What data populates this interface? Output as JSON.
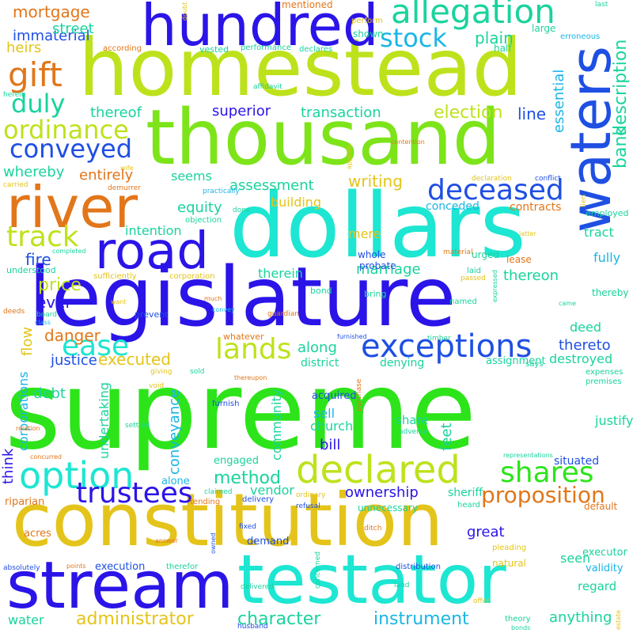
{
  "palette": {
    "blue": "#2b14e8",
    "lime": "#bde21c",
    "green": "#2de41a",
    "cyan": "#1de6d2",
    "orange": "#e2761a",
    "gold": "#e4c41a",
    "royal": "#1f4fe3",
    "teal": "#1ad39d",
    "sky": "#1ab6e6"
  },
  "words": [
    {
      "text": "supreme",
      "color": "#2de41a",
      "dir": "h"
    },
    {
      "text": "constitution",
      "color": "#e4c41a",
      "dir": "h"
    },
    {
      "text": "legislature",
      "color": "#2b14e8",
      "dir": "h"
    },
    {
      "text": "homestead",
      "color": "#bde21c",
      "dir": "h"
    },
    {
      "text": "thousand",
      "color": "#7de41a",
      "dir": "h"
    },
    {
      "text": "dollars",
      "color": "#1de6d2",
      "dir": "h"
    },
    {
      "text": "testator",
      "color": "#1de6d2",
      "dir": "h"
    },
    {
      "text": "stream",
      "color": "#2b14e8",
      "dir": "h"
    },
    {
      "text": "hundred",
      "color": "#2b14e8",
      "dir": "h"
    },
    {
      "text": "road",
      "color": "#2b14e8",
      "dir": "h"
    },
    {
      "text": "river",
      "color": "#e2761a",
      "dir": "h"
    },
    {
      "text": "waters",
      "color": "#1f4fe3",
      "dir": "v"
    },
    {
      "text": "allegation",
      "color": "#1ad39d",
      "dir": "h"
    },
    {
      "text": "option",
      "color": "#1de6d2",
      "dir": "h"
    },
    {
      "text": "declared",
      "color": "#bde21c",
      "dir": "h"
    },
    {
      "text": "exceptions",
      "color": "#1f4fe3",
      "dir": "h"
    },
    {
      "text": "deceased",
      "color": "#1f4fe3",
      "dir": "h"
    },
    {
      "text": "gift",
      "color": "#e2761a",
      "dir": "h"
    },
    {
      "text": "track",
      "color": "#bde21c",
      "dir": "h"
    },
    {
      "text": "conveyed",
      "color": "#1f4fe3",
      "dir": "h"
    },
    {
      "text": "trustees",
      "color": "#2b14e8",
      "dir": "h"
    },
    {
      "text": "shares",
      "color": "#2de41a",
      "dir": "h"
    },
    {
      "text": "lands",
      "color": "#bde21c",
      "dir": "h"
    },
    {
      "text": "ease",
      "color": "#1de6d2",
      "dir": "h"
    },
    {
      "text": "duly",
      "color": "#1ad39d",
      "dir": "h"
    },
    {
      "text": "ordinance",
      "color": "#bde21c",
      "dir": "h"
    },
    {
      "text": "stock",
      "color": "#1ab6e6",
      "dir": "h"
    },
    {
      "text": "proposition",
      "color": "#e2761a",
      "dir": "h"
    },
    {
      "text": "administrator",
      "color": "#e4c41a",
      "dir": "h"
    },
    {
      "text": "instrument",
      "color": "#1ab6e6",
      "dir": "h"
    },
    {
      "text": "character",
      "color": "#1ad39d",
      "dir": "h"
    },
    {
      "text": "method",
      "color": "#1ad39d",
      "dir": "h"
    },
    {
      "text": "mortgage",
      "color": "#e2761a",
      "dir": "h"
    },
    {
      "text": "immaterial",
      "color": "#1f4fe3",
      "dir": "h"
    },
    {
      "text": "street",
      "color": "#1ad39d",
      "dir": "h"
    },
    {
      "text": "heirs",
      "color": "#e4c41a",
      "dir": "h"
    },
    {
      "text": "plain",
      "color": "#1ad39d",
      "dir": "h"
    },
    {
      "text": "bank",
      "color": "#1ad39d",
      "dir": "v"
    },
    {
      "text": "description",
      "color": "#1ad39d",
      "dir": "v"
    },
    {
      "text": "essential",
      "color": "#1ab6e6",
      "dir": "v"
    },
    {
      "text": "election",
      "color": "#bde21c",
      "dir": "h"
    },
    {
      "text": "line",
      "color": "#1f4fe3",
      "dir": "h"
    },
    {
      "text": "transaction",
      "color": "#1ad39d",
      "dir": "h"
    },
    {
      "text": "superior",
      "color": "#2b14e8",
      "dir": "h"
    },
    {
      "text": "thereof",
      "color": "#1ad39d",
      "dir": "h"
    },
    {
      "text": "whereby",
      "color": "#1ad39d",
      "dir": "h"
    },
    {
      "text": "entirely",
      "color": "#e2761a",
      "dir": "h"
    },
    {
      "text": "seems",
      "color": "#1ad39d",
      "dir": "h"
    },
    {
      "text": "assessment",
      "color": "#1ad39d",
      "dir": "h"
    },
    {
      "text": "writing",
      "color": "#e4c41a",
      "dir": "h"
    },
    {
      "text": "equity",
      "color": "#1ad39d",
      "dir": "h"
    },
    {
      "text": "intention",
      "color": "#1ad39d",
      "dir": "h"
    },
    {
      "text": "fire",
      "color": "#1f4fe3",
      "dir": "h"
    },
    {
      "text": "price",
      "color": "#bde21c",
      "dir": "h"
    },
    {
      "text": "ever",
      "color": "#2b14e8",
      "dir": "h"
    },
    {
      "text": "danger",
      "color": "#e2761a",
      "dir": "h"
    },
    {
      "text": "flow",
      "color": "#e4c41a",
      "dir": "v"
    },
    {
      "text": "justice",
      "color": "#1f4fe3",
      "dir": "h"
    },
    {
      "text": "executed",
      "color": "#e4c41a",
      "dir": "h"
    },
    {
      "text": "along",
      "color": "#1ad39d",
      "dir": "h"
    },
    {
      "text": "thereto",
      "color": "#1f4fe3",
      "dir": "h"
    },
    {
      "text": "thereon",
      "color": "#1ad39d",
      "dir": "h"
    },
    {
      "text": "marriage",
      "color": "#1ad39d",
      "dir": "h"
    },
    {
      "text": "therein",
      "color": "#1ad39d",
      "dir": "h"
    },
    {
      "text": "building",
      "color": "#e4c41a",
      "dir": "h"
    },
    {
      "text": "conceded",
      "color": "#1ab6e6",
      "dir": "h"
    },
    {
      "text": "mere",
      "color": "#e4c41a",
      "dir": "h"
    },
    {
      "text": "contracts",
      "color": "#e2761a",
      "dir": "h"
    },
    {
      "text": "tract",
      "color": "#1ad39d",
      "dir": "h"
    },
    {
      "text": "fully",
      "color": "#1ab6e6",
      "dir": "h"
    },
    {
      "text": "deed",
      "color": "#1ad39d",
      "dir": "h"
    },
    {
      "text": "destroyed",
      "color": "#1ad39d",
      "dir": "h"
    },
    {
      "text": "assignment",
      "color": "#1ad39d",
      "dir": "h"
    },
    {
      "text": "district",
      "color": "#1ad39d",
      "dir": "h"
    },
    {
      "text": "denying",
      "color": "#1ad39d",
      "dir": "h"
    },
    {
      "text": "corporations",
      "color": "#1ab6e6",
      "dir": "v"
    },
    {
      "text": "think",
      "color": "#2b14e8",
      "dir": "v"
    },
    {
      "text": "undertaking",
      "color": "#1ad39d",
      "dir": "v"
    },
    {
      "text": "conveyance",
      "color": "#1ab6e6",
      "dir": "v"
    },
    {
      "text": "community",
      "color": "#1ad39d",
      "dir": "v"
    },
    {
      "text": "feet",
      "color": "#1ad39d",
      "dir": "v"
    },
    {
      "text": "sell",
      "color": "#1ab6e6",
      "dir": "h"
    },
    {
      "text": "church",
      "color": "#1ad39d",
      "dir": "h"
    },
    {
      "text": "bill",
      "color": "#2b14e8",
      "dir": "h"
    },
    {
      "text": "debt",
      "color": "#1ad39d",
      "dir": "h"
    },
    {
      "text": "acquired",
      "color": "#1f4fe3",
      "dir": "h"
    },
    {
      "text": "share",
      "color": "#1ad39d",
      "dir": "h"
    },
    {
      "text": "justify",
      "color": "#1ad39d",
      "dir": "h"
    },
    {
      "text": "situated",
      "color": "#1f4fe3",
      "dir": "h"
    },
    {
      "text": "ownership",
      "color": "#2b14e8",
      "dir": "h"
    },
    {
      "text": "vendor",
      "color": "#1ad39d",
      "dir": "h"
    },
    {
      "text": "sheriff",
      "color": "#1ad39d",
      "dir": "h"
    },
    {
      "text": "great",
      "color": "#2b14e8",
      "dir": "h"
    },
    {
      "text": "seen",
      "color": "#1ad39d",
      "dir": "h"
    },
    {
      "text": "regard",
      "color": "#1ad39d",
      "dir": "h"
    },
    {
      "text": "anything",
      "color": "#1ad39d",
      "dir": "h"
    },
    {
      "text": "water",
      "color": "#1ad39d",
      "dir": "h"
    },
    {
      "text": "riparian",
      "color": "#e2761a",
      "dir": "h"
    },
    {
      "text": "alone",
      "color": "#1ab6e6",
      "dir": "h"
    },
    {
      "text": "engaged",
      "color": "#1ad39d",
      "dir": "h"
    },
    {
      "text": "demand",
      "color": "#1f4fe3",
      "dir": "h"
    },
    {
      "text": "acres",
      "color": "#e2761a",
      "dir": "h"
    },
    {
      "text": "execution",
      "color": "#1f4fe3",
      "dir": "h"
    },
    {
      "text": "executor",
      "color": "#1ad39d",
      "dir": "h"
    },
    {
      "text": "validity",
      "color": "#1ab6e6",
      "dir": "h"
    },
    {
      "text": "natural",
      "color": "#e4c41a",
      "dir": "h"
    },
    {
      "text": "according",
      "color": "#e2761a",
      "dir": "h"
    },
    {
      "text": "vested",
      "color": "#1ad39d",
      "dir": "h"
    },
    {
      "text": "performance",
      "color": "#1ad39d",
      "dir": "h"
    },
    {
      "text": "declares",
      "color": "#1ad39d",
      "dir": "h"
    },
    {
      "text": "half",
      "color": "#1ad39d",
      "dir": "h"
    },
    {
      "text": "shown",
      "color": "#1ad39d",
      "dir": "h"
    },
    {
      "text": "large",
      "color": "#1ad39d",
      "dir": "h"
    },
    {
      "text": "erroneous",
      "color": "#1ab6e6",
      "dir": "h"
    },
    {
      "text": "mentioned",
      "color": "#e2761a",
      "dir": "h"
    },
    {
      "text": "perform",
      "color": "#e4c41a",
      "dir": "h"
    },
    {
      "text": "last",
      "color": "#1ad39d",
      "dir": "h"
    },
    {
      "text": "affidavit",
      "color": "#1ad39d",
      "dir": "h"
    },
    {
      "text": "doubt",
      "color": "#e4c41a",
      "dir": "v"
    },
    {
      "text": "herein",
      "color": "#1ad39d",
      "dir": "h"
    },
    {
      "text": "appeals",
      "color": "#e4c41a",
      "dir": "v"
    },
    {
      "text": "contention",
      "color": "#e2761a",
      "dir": "h"
    },
    {
      "text": "wife",
      "color": "#e4c41a",
      "dir": "h"
    },
    {
      "text": "carried",
      "color": "#e4c41a",
      "dir": "h"
    },
    {
      "text": "demurrer",
      "color": "#e2761a",
      "dir": "h"
    },
    {
      "text": "declaration",
      "color": "#e4c41a",
      "dir": "h"
    },
    {
      "text": "conflict",
      "color": "#1f4fe3",
      "dir": "h"
    },
    {
      "text": "lien",
      "color": "#e4c41a",
      "dir": "v"
    },
    {
      "text": "employed",
      "color": "#1ad39d",
      "dir": "h"
    },
    {
      "text": "practically",
      "color": "#1ab6e6",
      "dir": "h"
    },
    {
      "text": "objection",
      "color": "#1ad39d",
      "dir": "h"
    },
    {
      "text": "done",
      "color": "#1ad39d",
      "dir": "h"
    },
    {
      "text": "completed",
      "color": "#1ad39d",
      "dir": "h"
    },
    {
      "text": "material",
      "color": "#e2761a",
      "dir": "h"
    },
    {
      "text": "latter",
      "color": "#e4c41a",
      "dir": "h"
    },
    {
      "text": "lease",
      "color": "#e2761a",
      "dir": "h"
    },
    {
      "text": "whole",
      "color": "#1f4fe3",
      "dir": "h"
    },
    {
      "text": "probate",
      "color": "#1f4fe3",
      "dir": "h"
    },
    {
      "text": "urged",
      "color": "#1ad39d",
      "dir": "h"
    },
    {
      "text": "understood",
      "color": "#1ad39d",
      "dir": "h"
    },
    {
      "text": "sufficiently",
      "color": "#e4c41a",
      "dir": "h"
    },
    {
      "text": "corporation",
      "color": "#e4c41a",
      "dir": "h"
    },
    {
      "text": "laid",
      "color": "#1ad39d",
      "dir": "h"
    },
    {
      "text": "passed",
      "color": "#e4c41a",
      "dir": "h"
    },
    {
      "text": "thereby",
      "color": "#1ad39d",
      "dir": "h"
    },
    {
      "text": "expressed",
      "color": "#1ad39d",
      "dir": "v"
    },
    {
      "text": "bond",
      "color": "#1ad39d",
      "dir": "h"
    },
    {
      "text": "bring",
      "color": "#1ad39d",
      "dir": "h"
    },
    {
      "text": "named",
      "color": "#1ad39d",
      "dir": "h"
    },
    {
      "text": "want",
      "color": "#e4c41a",
      "dir": "h"
    },
    {
      "text": "much",
      "color": "#e2761a",
      "dir": "h"
    },
    {
      "text": "convey",
      "color": "#1ab6e6",
      "dir": "h"
    },
    {
      "text": "guardian",
      "color": "#e2761a",
      "dir": "h"
    },
    {
      "text": "came",
      "color": "#1ad39d",
      "dir": "h"
    },
    {
      "text": "deeds",
      "color": "#e2761a",
      "dir": "h"
    },
    {
      "text": "board",
      "color": "#1ad39d",
      "dir": "h"
    },
    {
      "text": "prevent",
      "color": "#1f4fe3",
      "dir": "h"
    },
    {
      "text": "class",
      "color": "#1ab6e6",
      "dir": "h"
    },
    {
      "text": "whatever",
      "color": "#e2761a",
      "dir": "h"
    },
    {
      "text": "furnished",
      "color": "#1f4fe3",
      "dir": "h"
    },
    {
      "text": "timber",
      "color": "#1ad39d",
      "dir": "h"
    },
    {
      "text": "expenses",
      "color": "#1ad39d",
      "dir": "h"
    },
    {
      "text": "premises",
      "color": "#1ad39d",
      "dir": "h"
    },
    {
      "text": "giving",
      "color": "#e4c41a",
      "dir": "h"
    },
    {
      "text": "thereupon",
      "color": "#e2761a",
      "dir": "h"
    },
    {
      "text": "says",
      "color": "#1ad39d",
      "dir": "h"
    },
    {
      "text": "sold",
      "color": "#1ad39d",
      "dir": "h"
    },
    {
      "text": "void",
      "color": "#e4c41a",
      "dir": "h"
    },
    {
      "text": "furnish",
      "color": "#1f4fe3",
      "dir": "h"
    },
    {
      "text": "purchase",
      "color": "#e2761a",
      "dir": "v"
    },
    {
      "text": "settled",
      "color": "#1ad39d",
      "dir": "h"
    },
    {
      "text": "relation",
      "color": "#e2761a",
      "dir": "h"
    },
    {
      "text": "adverse",
      "color": "#1ad39d",
      "dir": "h"
    },
    {
      "text": "concurred",
      "color": "#e2761a",
      "dir": "h"
    },
    {
      "text": "representations",
      "color": "#1ad39d",
      "dir": "h"
    },
    {
      "text": "claimed",
      "color": "#1ad39d",
      "dir": "h"
    },
    {
      "text": "tending",
      "color": "#e2761a",
      "dir": "h"
    },
    {
      "text": "delivery",
      "color": "#1f4fe3",
      "dir": "h"
    },
    {
      "text": "unnecessary",
      "color": "#1ad39d",
      "dir": "h"
    },
    {
      "text": "refusal",
      "color": "#1f4fe3",
      "dir": "h"
    },
    {
      "text": "heard",
      "color": "#1ad39d",
      "dir": "h"
    },
    {
      "text": "default",
      "color": "#e2761a",
      "dir": "h"
    },
    {
      "text": "ordinary",
      "color": "#e4c41a",
      "dir": "h"
    },
    {
      "text": "fixed",
      "color": "#1f4fe3",
      "dir": "h"
    },
    {
      "text": "ditch",
      "color": "#e2761a",
      "dir": "h"
    },
    {
      "text": "pleading",
      "color": "#e4c41a",
      "dir": "h"
    },
    {
      "text": "owned",
      "color": "#1f4fe3",
      "dir": "v"
    },
    {
      "text": "answer",
      "color": "#e2761a",
      "dir": "h"
    },
    {
      "text": "absolutely",
      "color": "#1f4fe3",
      "dir": "h"
    },
    {
      "text": "points",
      "color": "#e2761a",
      "dir": "h"
    },
    {
      "text": "therefor",
      "color": "#1ad39d",
      "dir": "h"
    },
    {
      "text": "delivered",
      "color": "#1ad39d",
      "dir": "h"
    },
    {
      "text": "concerned",
      "color": "#1ad39d",
      "dir": "v"
    },
    {
      "text": "distribution",
      "color": "#1f4fe3",
      "dir": "h"
    },
    {
      "text": "land",
      "color": "#1ad39d",
      "dir": "h"
    },
    {
      "text": "offer",
      "color": "#e4c41a",
      "dir": "h"
    },
    {
      "text": "theory",
      "color": "#1ad39d",
      "dir": "h"
    },
    {
      "text": "husband",
      "color": "#1f4fe3",
      "dir": "h"
    },
    {
      "text": "bonds",
      "color": "#1ad39d",
      "dir": "h"
    },
    {
      "text": "estate",
      "color": "#e4c41a",
      "dir": "v"
    }
  ]
}
